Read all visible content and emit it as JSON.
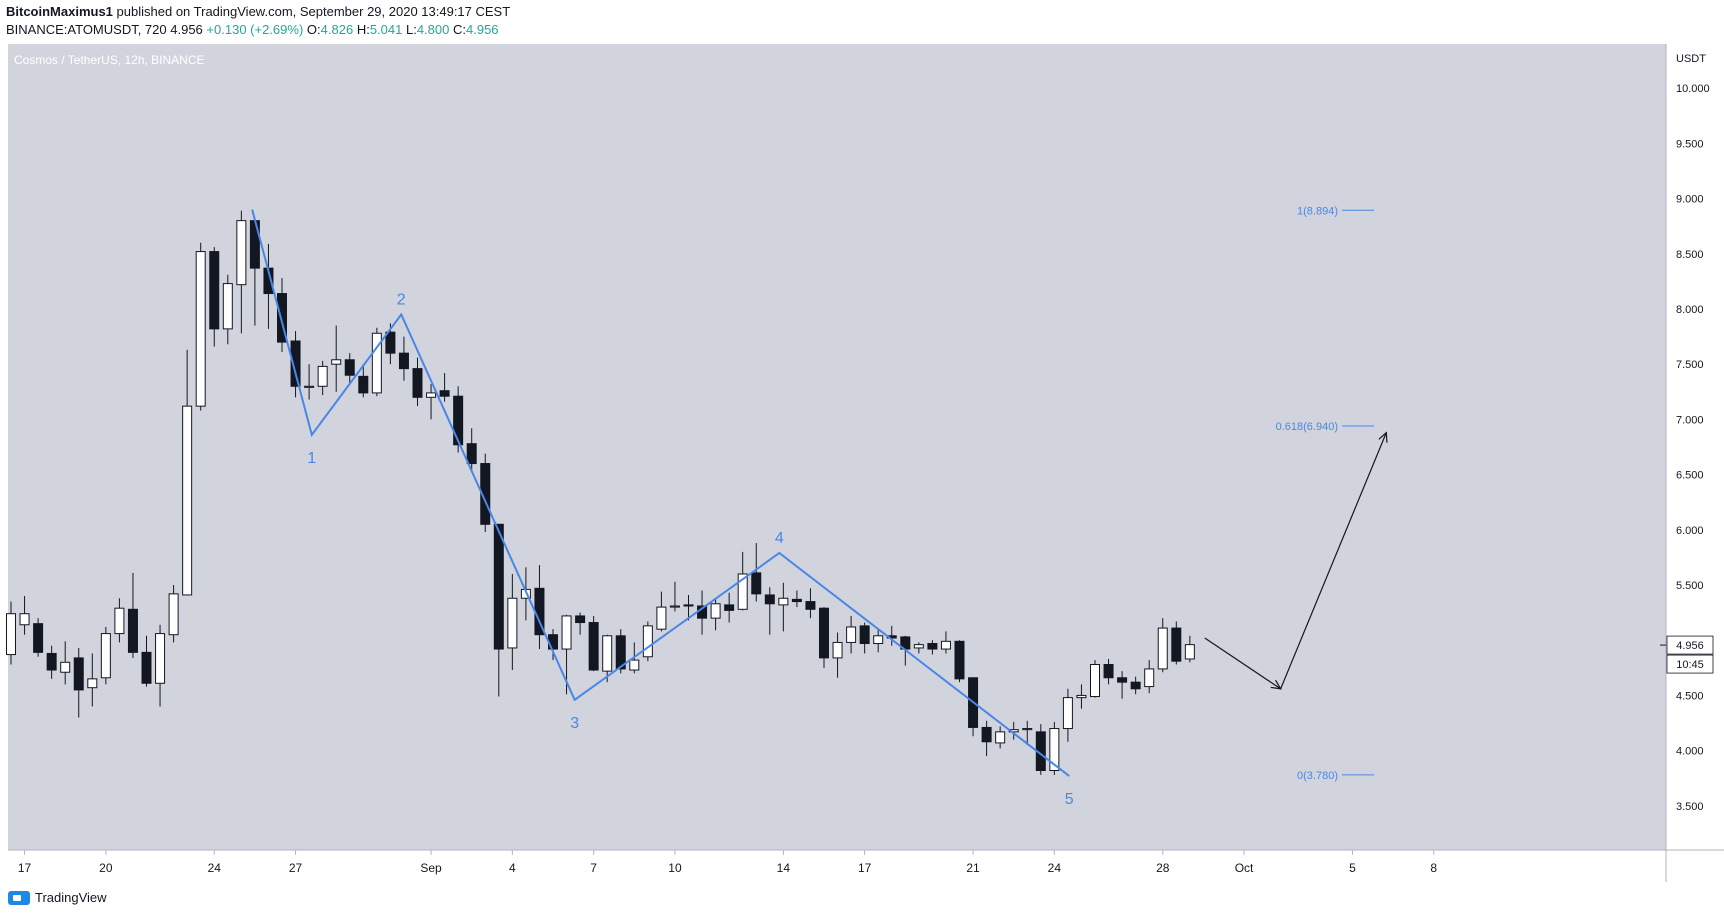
{
  "header": {
    "author": "BitcoinMaximus1",
    "published": "published on TradingView.com, September 29, 2020 13:49:17 CEST",
    "symbol": "BINANCE:ATOMUSDT, 720",
    "last": "4.956",
    "change": "+0.130 (+2.69%)",
    "o_label": "O:",
    "o": "4.826",
    "h_label": "H:",
    "h": "5.041",
    "l_label": "L:",
    "l": "4.800",
    "c_label": "C:",
    "c": "4.956"
  },
  "footer": {
    "brand": "TradingView"
  },
  "colors": {
    "plot_bg": "#d1d4dc",
    "wave": "#4a86e8",
    "up_body": "#ffffff",
    "down_body": "#131722"
  },
  "chart_data": {
    "type": "candlestick",
    "title": "Cosmos / TetherUS, 12h, BINANCE",
    "currency": "USDT",
    "ylim": [
      3.1,
      10.4
    ],
    "y_ticks": [
      "10.000",
      "9.500",
      "9.000",
      "8.500",
      "8.000",
      "7.500",
      "7.000",
      "6.500",
      "6.000",
      "5.500",
      "5.000",
      "4.500",
      "4.000",
      "3.500"
    ],
    "x_ticks": [
      {
        "label": "17",
        "i": 1
      },
      {
        "label": "20",
        "i": 7
      },
      {
        "label": "24",
        "i": 15
      },
      {
        "label": "27",
        "i": 21
      },
      {
        "label": "Sep",
        "i": 31
      },
      {
        "label": "4",
        "i": 37
      },
      {
        "label": "7",
        "i": 43
      },
      {
        "label": "10",
        "i": 49
      },
      {
        "label": "14",
        "i": 57
      },
      {
        "label": "17",
        "i": 63
      },
      {
        "label": "21",
        "i": 71
      },
      {
        "label": "24",
        "i": 77
      },
      {
        "label": "28",
        "i": 85
      },
      {
        "label": "Oct",
        "i": 91
      },
      {
        "label": "5",
        "i": 99
      },
      {
        "label": "8",
        "i": 105
      }
    ],
    "candles": [
      [
        4.87,
        5.24,
        5.35,
        4.78
      ],
      [
        5.14,
        5.24,
        5.4,
        5.05
      ],
      [
        5.15,
        4.89,
        5.2,
        4.85
      ],
      [
        4.88,
        4.73,
        4.95,
        4.65
      ],
      [
        4.71,
        4.8,
        4.99,
        4.6
      ],
      [
        4.84,
        4.55,
        4.93,
        4.3
      ],
      [
        4.57,
        4.65,
        4.88,
        4.4
      ],
      [
        4.66,
        5.06,
        5.12,
        4.6
      ],
      [
        5.06,
        5.29,
        5.38,
        4.98
      ],
      [
        5.28,
        4.89,
        5.61,
        4.84
      ],
      [
        4.89,
        4.61,
        5.04,
        4.58
      ],
      [
        4.61,
        5.06,
        5.14,
        4.4
      ],
      [
        5.05,
        5.42,
        5.5,
        4.98
      ],
      [
        5.41,
        7.12,
        7.63,
        7.05
      ],
      [
        7.12,
        8.52,
        8.6,
        7.08
      ],
      [
        8.52,
        7.82,
        8.56,
        7.66
      ],
      [
        7.82,
        8.23,
        8.31,
        7.68
      ],
      [
        8.22,
        8.8,
        8.89,
        7.78
      ],
      [
        8.8,
        8.37,
        8.82,
        7.85
      ],
      [
        8.37,
        8.14,
        8.59,
        7.82
      ],
      [
        8.14,
        7.7,
        8.28,
        7.61
      ],
      [
        7.71,
        7.3,
        7.8,
        7.2
      ],
      [
        7.29,
        7.3,
        7.5,
        7.18
      ],
      [
        7.3,
        7.48,
        7.53,
        7.22
      ],
      [
        7.5,
        7.54,
        7.85,
        7.25
      ],
      [
        7.54,
        7.4,
        7.6,
        7.32
      ],
      [
        7.39,
        7.24,
        7.5,
        7.2
      ],
      [
        7.24,
        7.78,
        7.83,
        7.21
      ],
      [
        7.79,
        7.6,
        7.87,
        7.5
      ],
      [
        7.6,
        7.46,
        7.75,
        7.35
      ],
      [
        7.46,
        7.2,
        7.56,
        7.12
      ],
      [
        7.2,
        7.24,
        7.32,
        7.0
      ],
      [
        7.26,
        7.21,
        7.42,
        7.16
      ],
      [
        7.21,
        6.77,
        7.3,
        6.7
      ],
      [
        6.78,
        6.6,
        6.92,
        6.52
      ],
      [
        6.6,
        6.05,
        6.69,
        5.98
      ],
      [
        6.05,
        4.92,
        6.05,
        4.49
      ],
      [
        4.93,
        5.38,
        5.6,
        4.73
      ],
      [
        5.38,
        5.46,
        5.66,
        5.18
      ],
      [
        5.47,
        5.05,
        5.68,
        4.92
      ],
      [
        5.05,
        4.92,
        5.1,
        4.82
      ],
      [
        4.92,
        5.22,
        5.23,
        4.51
      ],
      [
        5.22,
        5.16,
        5.25,
        5.05
      ],
      [
        5.16,
        4.73,
        5.22,
        4.72
      ],
      [
        4.72,
        5.04,
        5.05,
        4.62
      ],
      [
        5.04,
        4.74,
        5.1,
        4.7
      ],
      [
        4.73,
        4.82,
        4.98,
        4.7
      ],
      [
        4.85,
        5.13,
        5.17,
        4.81
      ],
      [
        5.1,
        5.3,
        5.44,
        5.08
      ],
      [
        5.3,
        5.31,
        5.53,
        5.26
      ],
      [
        5.32,
        5.31,
        5.41,
        5.18
      ],
      [
        5.31,
        5.2,
        5.45,
        5.05
      ],
      [
        5.2,
        5.33,
        5.38,
        5.09
      ],
      [
        5.32,
        5.27,
        5.43,
        5.16
      ],
      [
        5.28,
        5.6,
        5.8,
        5.27
      ],
      [
        5.61,
        5.42,
        5.88,
        5.35
      ],
      [
        5.41,
        5.33,
        5.48,
        5.05
      ],
      [
        5.32,
        5.38,
        5.52,
        5.08
      ],
      [
        5.37,
        5.35,
        5.45,
        5.3
      ],
      [
        5.35,
        5.28,
        5.47,
        5.2
      ],
      [
        5.29,
        4.84,
        5.3,
        4.75
      ],
      [
        4.84,
        4.98,
        5.07,
        4.66
      ],
      [
        4.98,
        5.12,
        5.22,
        4.88
      ],
      [
        5.13,
        4.97,
        5.16,
        4.88
      ],
      [
        4.97,
        5.04,
        5.1,
        4.89
      ],
      [
        5.04,
        5.02,
        5.13,
        4.95
      ],
      [
        5.03,
        4.92,
        5.04,
        4.77
      ],
      [
        4.93,
        4.96,
        4.98,
        4.88
      ],
      [
        4.97,
        4.92,
        5.0,
        4.87
      ],
      [
        4.92,
        4.99,
        5.08,
        4.88
      ],
      [
        4.99,
        4.65,
        5.0,
        4.62
      ],
      [
        4.66,
        4.21,
        4.66,
        4.13
      ],
      [
        4.21,
        4.08,
        4.27,
        3.95
      ],
      [
        4.07,
        4.17,
        4.22,
        4.02
      ],
      [
        4.17,
        4.19,
        4.26,
        4.1
      ],
      [
        4.19,
        4.2,
        4.27,
        4.05
      ],
      [
        4.17,
        3.82,
        4.24,
        3.78
      ],
      [
        3.82,
        4.2,
        4.26,
        3.78
      ],
      [
        4.2,
        4.48,
        4.56,
        4.08
      ],
      [
        4.48,
        4.5,
        4.6,
        4.38
      ],
      [
        4.49,
        4.78,
        4.82,
        4.48
      ],
      [
        4.78,
        4.66,
        4.83,
        4.6
      ],
      [
        4.66,
        4.62,
        4.72,
        4.47
      ],
      [
        4.62,
        4.56,
        4.67,
        4.51
      ],
      [
        4.58,
        4.74,
        4.82,
        4.52
      ],
      [
        4.74,
        5.11,
        5.2,
        4.71
      ],
      [
        5.11,
        4.81,
        5.17,
        4.78
      ],
      [
        4.83,
        4.96,
        5.04,
        4.8
      ]
    ],
    "wave": {
      "points": [
        {
          "i": 17.8,
          "v": 8.9
        },
        {
          "i": 22.2,
          "v": 6.86
        },
        {
          "i": 28.8,
          "v": 7.95
        },
        {
          "i": 41.6,
          "v": 4.46
        },
        {
          "i": 56.7,
          "v": 5.79
        },
        {
          "i": 78.1,
          "v": 3.77
        }
      ],
      "labels": [
        "1",
        "2",
        "3",
        "4",
        "5"
      ]
    },
    "projection": [
      {
        "i": 88.1,
        "v": 5.02
      },
      {
        "i": 93.7,
        "v": 4.56
      },
      {
        "i": 101.5,
        "v": 6.88
      }
    ],
    "fib_levels": [
      {
        "label": "1(8.894)",
        "value": 8.894
      },
      {
        "label": "0.618(6.940)",
        "value": 6.94
      },
      {
        "label": "0(3.780)",
        "value": 3.78
      }
    ],
    "last_price_label": "4.956",
    "countdown": "10:45"
  }
}
